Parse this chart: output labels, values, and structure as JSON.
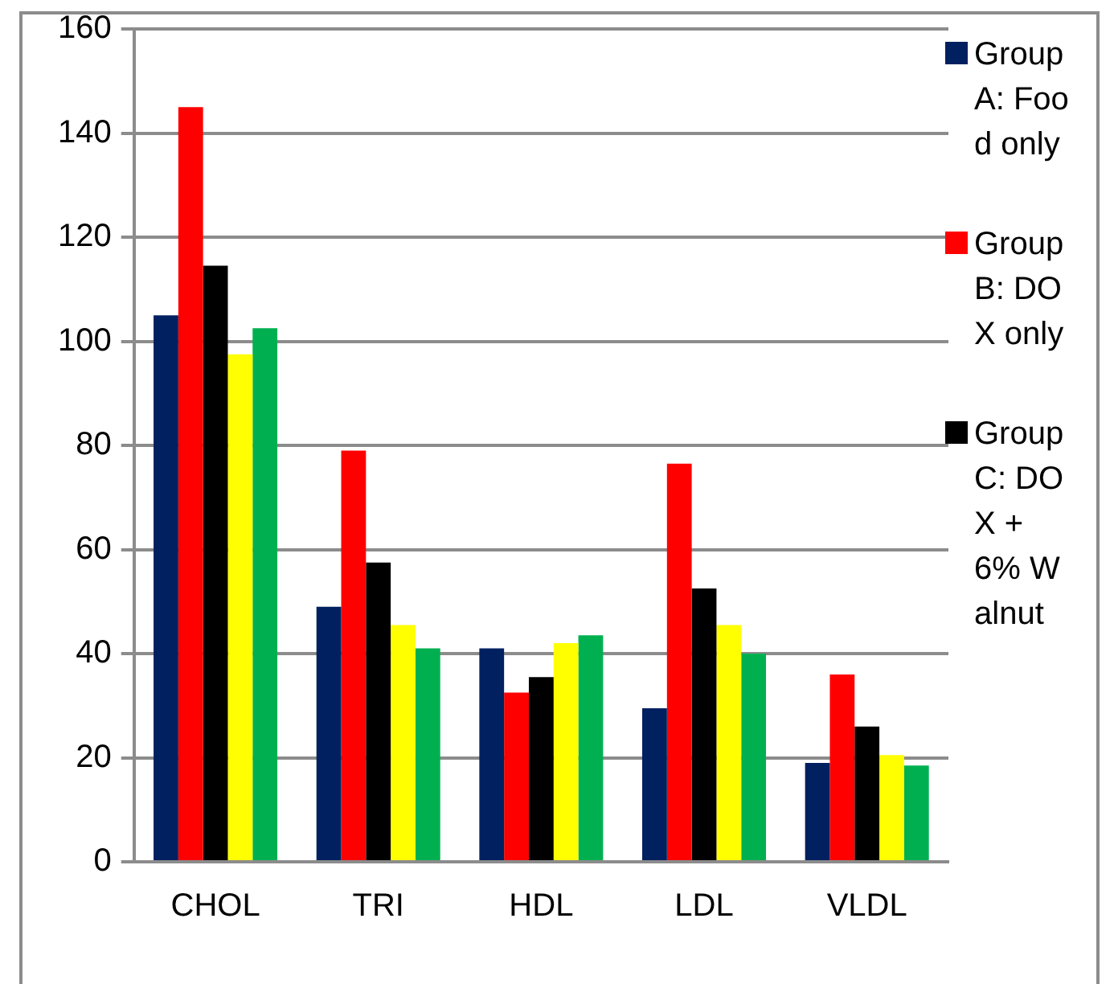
{
  "chart_data": {
    "type": "bar",
    "categories": [
      "CHOL",
      "TRI",
      "HDL",
      "LDL",
      "VLDL"
    ],
    "series": [
      {
        "name": "Group A: Food only",
        "color": "#002060",
        "values": [
          105,
          49,
          41,
          29.5,
          19
        ]
      },
      {
        "name": "Group B: DOX only",
        "color": "#ff0000",
        "values": [
          145,
          79,
          32.5,
          76.5,
          36
        ]
      },
      {
        "name": "Group C: DOX + 6% Walnut",
        "color": "#000000",
        "values": [
          114.5,
          57.5,
          35.5,
          52.5,
          26
        ]
      },
      {
        "color": "#ffff00",
        "values": [
          97.5,
          45.5,
          42,
          45.5,
          20.5
        ]
      },
      {
        "color": "#00b050",
        "values": [
          102.5,
          41,
          43.5,
          40,
          18.5
        ]
      }
    ],
    "ylim": [
      0,
      160
    ],
    "yticks": [
      0,
      20,
      40,
      60,
      80,
      100,
      120,
      140,
      160
    ],
    "grid": "y",
    "legend": "right"
  }
}
